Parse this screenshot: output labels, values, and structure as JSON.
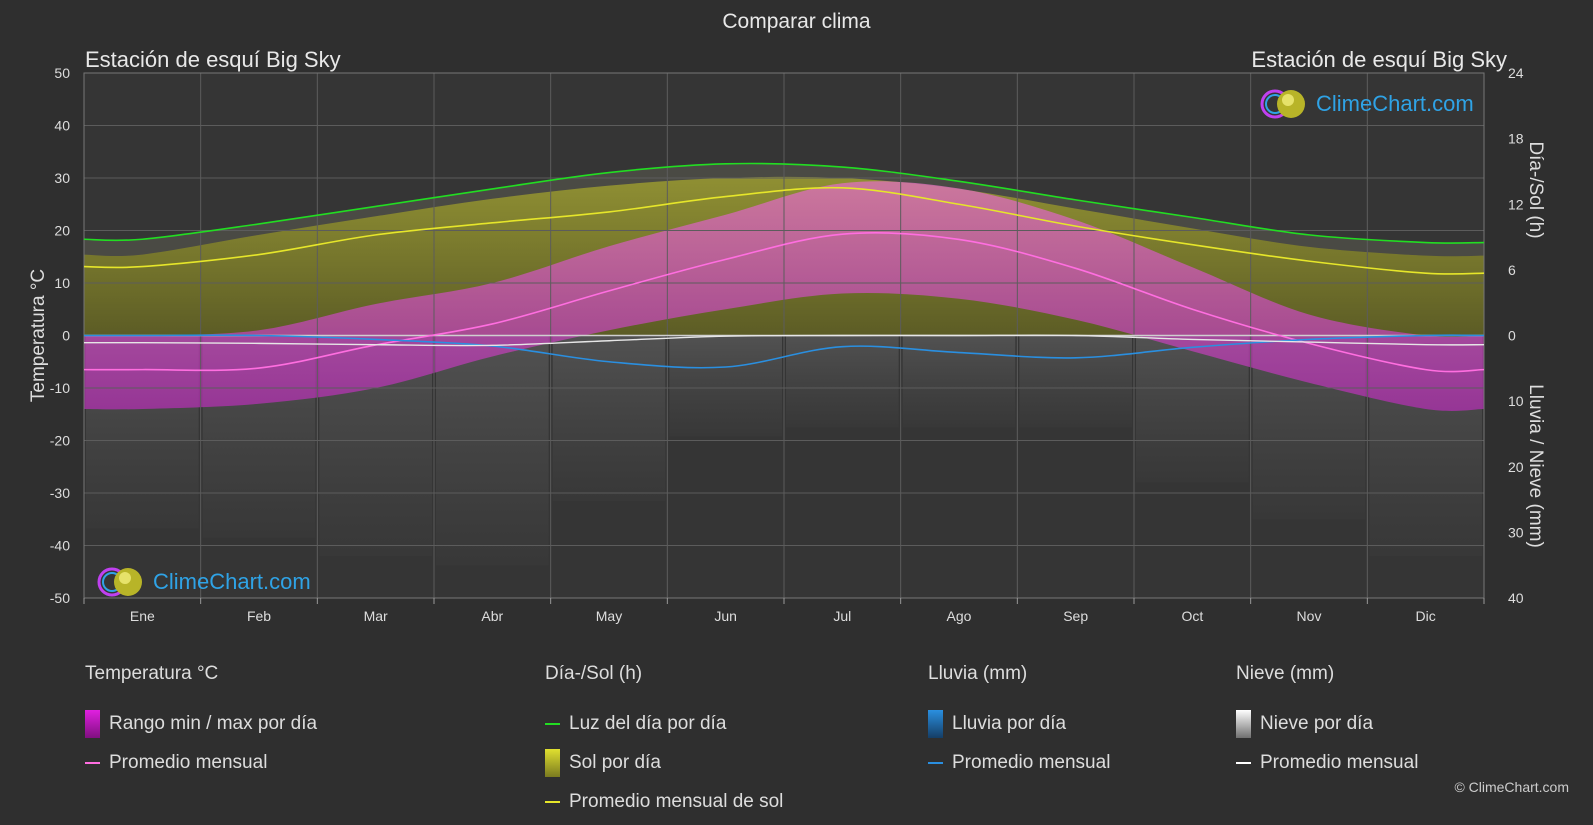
{
  "header": {
    "title": "Comparar clima",
    "location_left": "Estación de esquí Big Sky",
    "location_right": "Estación de esquí Big Sky"
  },
  "branding": {
    "logo_text": "ClimeChart.com",
    "copyright": "© ClimeChart.com"
  },
  "chart_data": {
    "type": "area",
    "x": [
      "Ene",
      "Feb",
      "Mar",
      "Abr",
      "May",
      "Jun",
      "Jul",
      "Ago",
      "Sep",
      "Oct",
      "Nov",
      "Dic"
    ],
    "left_axis": {
      "label": "Temperatura °C",
      "ticks": [
        "50",
        "40",
        "30",
        "20",
        "10",
        "0",
        "-10",
        "-20",
        "-30",
        "-40",
        "-50"
      ],
      "range": [
        -50,
        50
      ]
    },
    "right_axis_top": {
      "label": "Día-/Sol (h)",
      "ticks": [
        "24",
        "18",
        "12",
        "6",
        "0"
      ],
      "range": [
        0,
        24
      ]
    },
    "right_axis_bottom": {
      "label": "Lluvia / Nieve (mm)",
      "ticks": [
        "0",
        "10",
        "20",
        "30",
        "40"
      ],
      "range": [
        0,
        40
      ]
    },
    "grid": true,
    "series": [
      {
        "name": "Luz del día por día",
        "axis": "hours",
        "values": [
          8.8,
          10.2,
          11.8,
          13.4,
          14.9,
          15.7,
          15.4,
          14.1,
          12.4,
          10.8,
          9.2,
          8.5
        ]
      },
      {
        "name": "Promedio mensual de sol",
        "axis": "hours",
        "values": [
          6.3,
          7.4,
          9.2,
          10.3,
          11.3,
          12.7,
          13.5,
          12.0,
          10.0,
          8.3,
          6.8,
          5.7
        ]
      },
      {
        "name": "Sol por día",
        "axis": "hours",
        "values": [
          7.4,
          9.2,
          10.9,
          12.5,
          13.7,
          14.4,
          14.4,
          13.4,
          11.6,
          9.8,
          8.1,
          7.3
        ]
      },
      {
        "name": "Promedio mensual",
        "group": "Temperatura °C",
        "axis": "temp",
        "values": [
          -6.5,
          -6.2,
          -1.8,
          2.2,
          8.5,
          14.5,
          19.3,
          18.3,
          12.8,
          5.0,
          -1.5,
          -6.5
        ]
      },
      {
        "name": "Rango min / max por día",
        "axis": "temp",
        "min": [
          -14,
          -13,
          -10,
          -4,
          1,
          5,
          8,
          7,
          3,
          -3,
          -9,
          -14
        ],
        "max": [
          0,
          1,
          6,
          10,
          17,
          23,
          29,
          28,
          22,
          13,
          4,
          0
        ]
      },
      {
        "name": "Promedio mensual",
        "group": "Lluvia (mm)",
        "axis": "precip",
        "values": [
          0.0,
          0.0,
          0.6,
          1.6,
          4.0,
          4.8,
          1.7,
          2.6,
          3.4,
          1.8,
          0.6,
          0.0
        ]
      },
      {
        "name": "Promedio mensual",
        "group": "Nieve (mm)",
        "axis": "precip",
        "values": [
          1.1,
          1.2,
          1.4,
          1.5,
          0.8,
          0.1,
          0.0,
          0.0,
          0.0,
          0.6,
          1.0,
          1.4
        ]
      }
    ]
  },
  "legend": [
    {
      "heading": "Temperatura °C",
      "items": [
        {
          "label": "Rango min / max por día",
          "kind": "box",
          "color": "#e020e0"
        },
        {
          "label": "Promedio mensual",
          "kind": "line",
          "color": "#ff6ee0"
        }
      ]
    },
    {
      "heading": "Día-/Sol (h)",
      "items": [
        {
          "label": "Luz del día por día",
          "kind": "line",
          "color": "#22dd22"
        },
        {
          "label": "Sol por día",
          "kind": "box",
          "color": "#cccc22"
        },
        {
          "label": "Promedio mensual de sol",
          "kind": "line",
          "color": "#e6e62a"
        }
      ]
    },
    {
      "heading": "Lluvia (mm)",
      "items": [
        {
          "label": "Lluvia por día",
          "kind": "box",
          "color": "#2a8fe0"
        },
        {
          "label": "Promedio mensual",
          "kind": "line",
          "color": "#2a8fe0"
        }
      ]
    },
    {
      "heading": "Nieve (mm)",
      "items": [
        {
          "label": "Nieve por día",
          "kind": "box",
          "color": "#dddddd"
        },
        {
          "label": "Promedio mensual",
          "kind": "line",
          "color": "#ffffff"
        }
      ]
    }
  ]
}
